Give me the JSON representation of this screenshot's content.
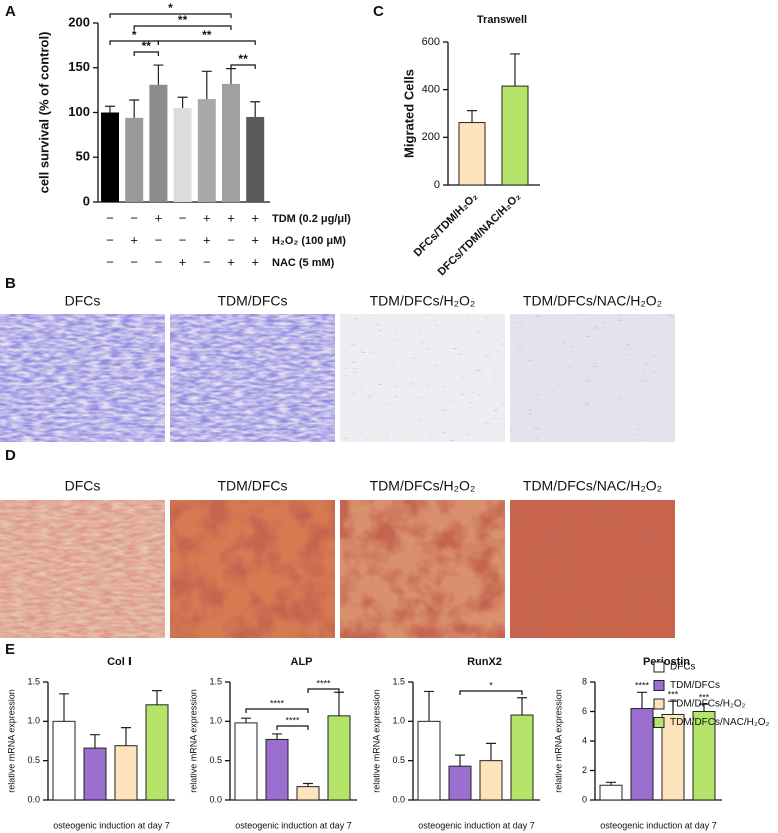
{
  "panel_labels": [
    "A",
    "B",
    "C",
    "D",
    "E"
  ],
  "chart_data": [
    {
      "type": "bar",
      "y_label": "cell survival (% of control)",
      "values": [
        100,
        94,
        131,
        105,
        115,
        132,
        95
      ],
      "errors": [
        7,
        20,
        22,
        12,
        31,
        17,
        17
      ],
      "colors": [
        "#000000",
        "#9a9a9a",
        "#8c8c8c",
        "#dcdcdc",
        "#a8a8a8",
        "#a0a0a0",
        "#5a5a5a"
      ],
      "ylim": [
        0,
        200
      ],
      "yticks": [
        0,
        50,
        100,
        150,
        200
      ],
      "treatments": [
        {
          "label": "TDM (0.2 μg/μl)",
          "signs": [
            "−",
            "−",
            "+",
            "−",
            "+",
            "+",
            "+"
          ]
        },
        {
          "label": "H₂O₂ (100 μM)",
          "signs": [
            "−",
            "+",
            "−",
            "−",
            "+",
            "−",
            "+"
          ]
        },
        {
          "label": "NAC (5 mM)",
          "signs": [
            "−",
            "−",
            "−",
            "+",
            "−",
            "+",
            "+"
          ]
        }
      ],
      "significance": [
        "*",
        "**",
        "*",
        "**",
        "**",
        "**"
      ]
    },
    {
      "type": "bar",
      "title": "Transwell",
      "y_label": "Migrated Cells",
      "categories": [
        "DFCs/TDM/H₂O₂",
        "DFCs/TDM/NAC/H₂O₂"
      ],
      "values": [
        262,
        415
      ],
      "errors": [
        50,
        135
      ],
      "colors": [
        "#fde4bd",
        "#b5e46a"
      ],
      "ylim": [
        0,
        600
      ],
      "yticks": [
        0,
        200,
        400,
        600
      ]
    },
    {
      "type": "bar",
      "title": "Col Ⅰ",
      "y_label": "relative mRNA expression",
      "x_label": "osteogenic induction  at day 7",
      "values": [
        1.0,
        0.66,
        0.69,
        1.21
      ],
      "errors": [
        0.35,
        0.17,
        0.23,
        0.18
      ],
      "ylim": [
        0,
        1.5
      ],
      "yticks": [
        {
          "value": 0,
          "label": "0.0"
        },
        0.5,
        {
          "value": 1,
          "label": "1.0"
        },
        1.5
      ]
    },
    {
      "type": "bar",
      "title": "ALP",
      "y_label": "relative mRNA expression",
      "x_label": "osteogenic induction  at day 7",
      "values": [
        0.98,
        0.77,
        0.17,
        1.07
      ],
      "errors": [
        0.06,
        0.07,
        0.04,
        0.3
      ],
      "ylim": [
        0,
        1.5
      ],
      "yticks": [
        {
          "value": 0,
          "label": "0.0"
        },
        0.5,
        {
          "value": 1,
          "label": "1.0"
        },
        1.5
      ],
      "significance": [
        "****",
        "****",
        "****"
      ]
    },
    {
      "type": "bar",
      "title": "RunX2",
      "y_label": "relative mRNA expression",
      "x_label": "osteogenic induction  at day 7",
      "values": [
        1.0,
        0.43,
        0.5,
        1.08
      ],
      "errors": [
        0.38,
        0.14,
        0.22,
        0.22
      ],
      "ylim": [
        0,
        1.5
      ],
      "yticks": [
        {
          "value": 0,
          "label": "0.0"
        },
        0.5,
        {
          "value": 1,
          "label": "1.0"
        },
        1.5
      ],
      "significance": [
        "*"
      ]
    },
    {
      "type": "bar",
      "title": "Periostin",
      "y_label": "relative mRNA expression",
      "x_label": "osteogenic induction  at day 7",
      "values": [
        1.0,
        6.2,
        5.8,
        6.0
      ],
      "errors": [
        0.2,
        1.1,
        0.9,
        0.5
      ],
      "ylim": [
        0,
        8
      ],
      "yticks": [
        0,
        2,
        4,
        6,
        8
      ],
      "bar_labels": [
        null,
        "****",
        "***",
        "***"
      ]
    }
  ],
  "legend": {
    "names": [
      "DFCs",
      "TDM/DFCs",
      "TDM/DFCs/H₂O₂",
      "TDM/DFCs/NAC/H₂O₂"
    ],
    "colors": [
      "#ffffff",
      "#9b6fcf",
      "#fde4bd",
      "#b5e46a"
    ]
  },
  "image_panels": {
    "B": [
      "DFCs",
      "TDM/DFCs",
      "TDM/DFCs/H₂O₂",
      "TDM/DFCs/NAC/H₂O₂"
    ],
    "D": [
      "DFCs",
      "TDM/DFCs",
      "TDM/DFCs/H₂O₂",
      "TDM/DFCs/NAC/H₂O₂"
    ]
  }
}
